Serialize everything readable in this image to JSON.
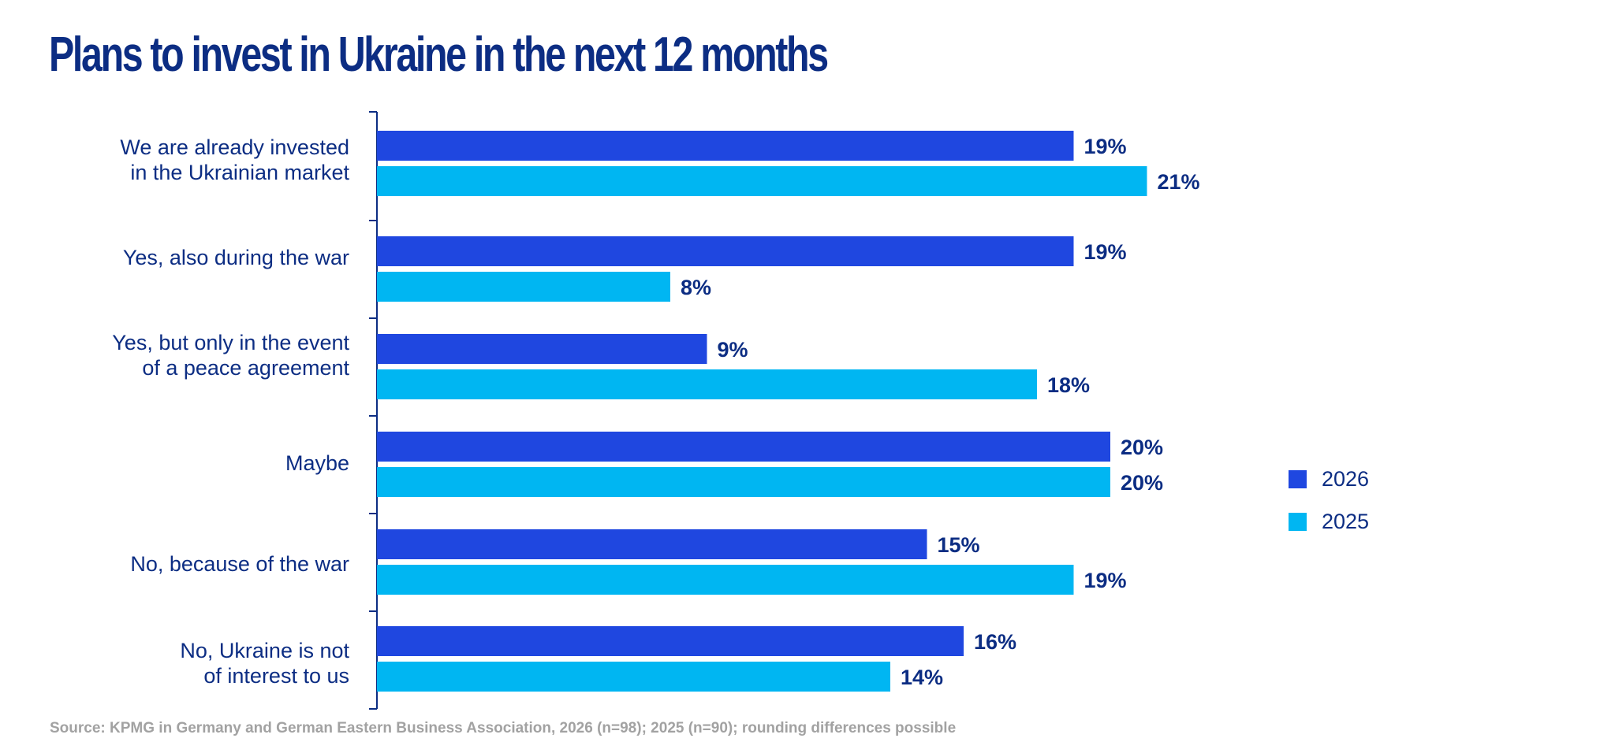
{
  "title": "Plans to invest in Ukraine in the next 12 months",
  "source": "Source: KPMG in Germany and German Eastern Business Association, 2026 (n=98); 2025 (n=90); rounding differences possible",
  "colors": {
    "title": "#0c2d83",
    "series_2026": "#1f47e0",
    "series_2025": "#00b6f2",
    "axis": "#0c2d83",
    "source": "#a2a2a2"
  },
  "chart_data": {
    "type": "bar",
    "orientation": "horizontal",
    "categories": [
      "We are already invested\nin the Ukrainian market",
      "Yes, also during the war",
      "Yes, but only in the event\nof a peace agreement",
      "Maybe",
      "No, because of the war",
      "No, Ukraine is not\nof interest to us"
    ],
    "series": [
      {
        "name": "2026",
        "color": "#1f47e0",
        "values": [
          19,
          19,
          9,
          20,
          15,
          16
        ]
      },
      {
        "name": "2025",
        "color": "#00b6f2",
        "values": [
          21,
          8,
          18,
          20,
          19,
          14
        ]
      }
    ],
    "value_format": "{v}%",
    "xlim": [
      0,
      21
    ],
    "grid": false,
    "legend_position": "right"
  }
}
